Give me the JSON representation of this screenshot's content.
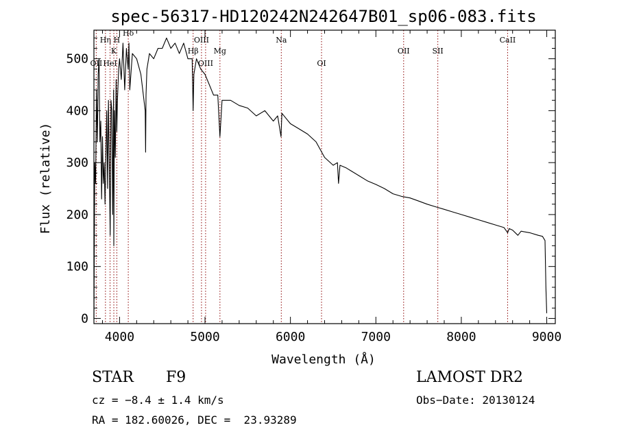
{
  "chart_data": {
    "type": "line",
    "title": "spec-56317-HD120242N242647B01_sp06-083.fits",
    "xlabel": "Wavelength (Å)",
    "ylabel": "Flux (relative)",
    "xlim": [
      3700,
      9100
    ],
    "ylim": [
      -10,
      555
    ],
    "xticks": [
      4000,
      5000,
      6000,
      7000,
      8000,
      9000
    ],
    "yticks": [
      0,
      100,
      200,
      300,
      400,
      500
    ],
    "grid": false,
    "series": [
      {
        "name": "flux",
        "x": [
          3700,
          3710,
          3720,
          3730,
          3740,
          3750,
          3760,
          3770,
          3780,
          3790,
          3800,
          3810,
          3820,
          3830,
          3840,
          3850,
          3860,
          3870,
          3880,
          3890,
          3900,
          3910,
          3920,
          3930,
          3933,
          3940,
          3950,
          3960,
          3968,
          3975,
          3990,
          4000,
          4020,
          4040,
          4060,
          4080,
          4100,
          4110,
          4120,
          4150,
          4200,
          4250,
          4300,
          4305,
          4310,
          4320,
          4350,
          4400,
          4450,
          4500,
          4550,
          4600,
          4650,
          4700,
          4750,
          4800,
          4850,
          4861,
          4870,
          4900,
          4950,
          5000,
          5050,
          5100,
          5150,
          5175,
          5200,
          5300,
          5400,
          5500,
          5600,
          5700,
          5800,
          5850,
          5890,
          5900,
          5950,
          6000,
          6100,
          6200,
          6300,
          6400,
          6500,
          6550,
          6563,
          6580,
          6650,
          6700,
          6800,
          6900,
          7000,
          7100,
          7200,
          7300,
          7400,
          7500,
          7600,
          7700,
          7800,
          7900,
          8000,
          8100,
          8200,
          8300,
          8400,
          8500,
          8542,
          8560,
          8600,
          8662,
          8700,
          8800,
          8900,
          8950,
          8980,
          8990,
          9000
        ],
        "values": [
          0,
          300,
          260,
          440,
          340,
          470,
          500,
          340,
          380,
          230,
          350,
          260,
          300,
          220,
          310,
          400,
          250,
          420,
          300,
          160,
          420,
          400,
          200,
          440,
          140,
          400,
          310,
          460,
          360,
          420,
          480,
          500,
          460,
          530,
          440,
          520,
          480,
          530,
          440,
          510,
          500,
          470,
          400,
          320,
          430,
          480,
          510,
          500,
          520,
          520,
          540,
          520,
          530,
          510,
          530,
          500,
          500,
          400,
          470,
          500,
          480,
          470,
          450,
          430,
          430,
          350,
          420,
          420,
          410,
          405,
          390,
          400,
          380,
          390,
          350,
          395,
          385,
          375,
          365,
          355,
          340,
          310,
          295,
          300,
          260,
          295,
          290,
          285,
          275,
          265,
          258,
          250,
          240,
          235,
          232,
          226,
          220,
          215,
          210,
          205,
          200,
          195,
          190,
          185,
          180,
          175,
          165,
          173,
          170,
          160,
          168,
          165,
          160,
          158,
          150,
          60,
          10
        ]
      }
    ],
    "line_markers": [
      {
        "label": "Hη",
        "wavelength": 3835,
        "row": 1
      },
      {
        "label": "H",
        "wavelength": 3968,
        "row": 1
      },
      {
        "label": "K",
        "wavelength": 3933,
        "row": 2
      },
      {
        "label": "OII",
        "wavelength": 3727,
        "row": 3
      },
      {
        "label": "HeI",
        "wavelength": 3889,
        "row": 3
      },
      {
        "label": "Hδ",
        "wavelength": 4102,
        "row": 0
      },
      {
        "label": "Hβ",
        "wavelength": 4861,
        "row": 2
      },
      {
        "label": "OIII",
        "wavelength": 4959,
        "row": 1
      },
      {
        "label": "OIII",
        "wavelength": 5007,
        "row": 3
      },
      {
        "label": "Mg",
        "wavelength": 5175,
        "row": 2
      },
      {
        "label": "Na",
        "wavelength": 5893,
        "row": 1
      },
      {
        "label": "OI",
        "wavelength": 6364,
        "row": 3
      },
      {
        "label": "OII",
        "wavelength": 7325,
        "row": 2
      },
      {
        "label": "SII",
        "wavelength": 7725,
        "row": 2
      },
      {
        "label": "CaII",
        "wavelength": 8542,
        "row": 1
      }
    ]
  },
  "info": {
    "class_label": "STAR",
    "subclass": "F9",
    "survey": "LAMOST DR2",
    "cz": "cz = −8.4 ± 1.4 km/s",
    "obs_date": "Obs−Date: 20130124",
    "coords": "RA = 182.60026, DEC =  23.93289"
  },
  "colors": {
    "axis": "#000000",
    "line": "#000000",
    "marker": "#8b0000"
  }
}
